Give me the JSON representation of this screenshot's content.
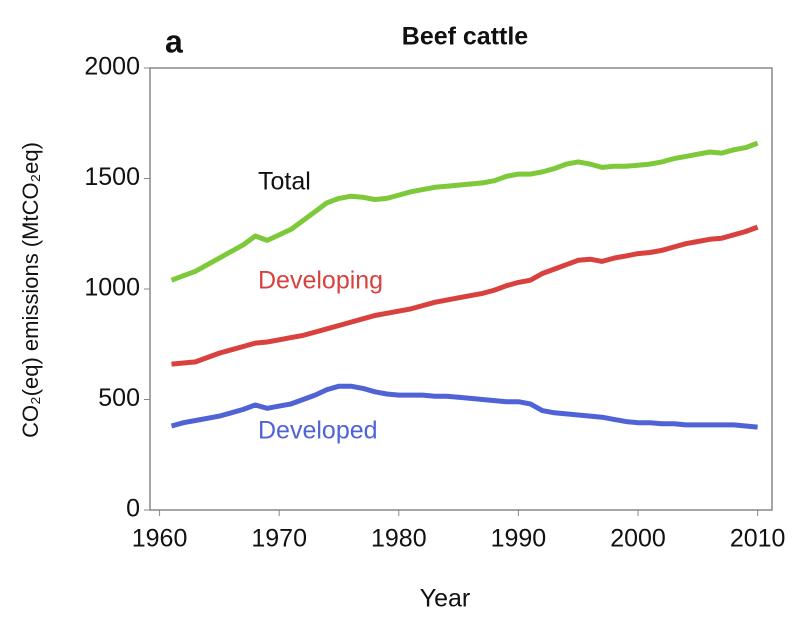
{
  "chart_data": {
    "type": "line",
    "panel_label": "a",
    "title": "Beef cattle",
    "xlabel": "Year",
    "ylabel": "CO₂(eq) emissions (MtCO₂eq)",
    "x": [
      1961,
      1962,
      1963,
      1964,
      1965,
      1966,
      1967,
      1968,
      1969,
      1970,
      1971,
      1972,
      1973,
      1974,
      1975,
      1976,
      1977,
      1978,
      1979,
      1980,
      1981,
      1982,
      1983,
      1984,
      1985,
      1986,
      1987,
      1988,
      1989,
      1990,
      1991,
      1992,
      1993,
      1994,
      1995,
      1996,
      1997,
      1998,
      1999,
      2000,
      2001,
      2002,
      2003,
      2004,
      2005,
      2006,
      2007,
      2008,
      2009,
      2010
    ],
    "series": [
      {
        "name": "Total",
        "color": "#7dc93a",
        "values": [
          1040,
          1060,
          1080,
          1110,
          1140,
          1170,
          1200,
          1240,
          1220,
          1245,
          1270,
          1310,
          1350,
          1390,
          1410,
          1420,
          1415,
          1405,
          1410,
          1425,
          1440,
          1450,
          1460,
          1465,
          1470,
          1475,
          1480,
          1490,
          1510,
          1520,
          1520,
          1530,
          1545,
          1565,
          1575,
          1565,
          1550,
          1555,
          1555,
          1560,
          1565,
          1575,
          1590,
          1600,
          1610,
          1620,
          1615,
          1630,
          1640,
          1660
        ]
      },
      {
        "name": "Developing",
        "color": "#d9413f",
        "values": [
          660,
          665,
          670,
          690,
          710,
          725,
          740,
          755,
          760,
          770,
          780,
          790,
          805,
          820,
          835,
          850,
          865,
          880,
          890,
          900,
          910,
          925,
          940,
          950,
          960,
          970,
          980,
          995,
          1015,
          1030,
          1040,
          1070,
          1090,
          1110,
          1130,
          1135,
          1125,
          1140,
          1150,
          1160,
          1165,
          1175,
          1190,
          1205,
          1215,
          1225,
          1230,
          1245,
          1260,
          1280
        ]
      },
      {
        "name": "Developed",
        "color": "#4f63d6",
        "values": [
          380,
          395,
          405,
          415,
          425,
          440,
          455,
          475,
          460,
          470,
          480,
          500,
          520,
          545,
          560,
          560,
          550,
          535,
          525,
          520,
          520,
          520,
          515,
          515,
          510,
          505,
          500,
          495,
          490,
          490,
          480,
          450,
          440,
          435,
          430,
          425,
          420,
          410,
          400,
          395,
          395,
          390,
          390,
          385,
          385,
          385,
          385,
          385,
          380,
          375
        ]
      }
    ],
    "xlim": [
      1959.2,
      2011.2
    ],
    "xticks": [
      1960,
      1970,
      1980,
      1990,
      2000,
      2010
    ],
    "ylim": [
      0,
      2000
    ],
    "yticks": [
      0,
      500,
      1000,
      1500,
      2000
    ]
  }
}
